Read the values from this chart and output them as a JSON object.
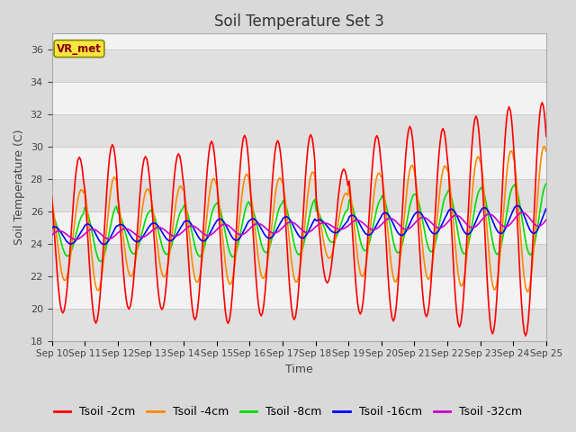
{
  "title": "Soil Temperature Set 3",
  "xlabel": "Time",
  "ylabel": "Soil Temperature (C)",
  "ylim": [
    18,
    37
  ],
  "yticks": [
    18,
    20,
    22,
    24,
    26,
    28,
    30,
    32,
    34,
    36
  ],
  "n_days": 15,
  "xtick_labels": [
    "Sep 10",
    "Sep 11",
    "Sep 12",
    "Sep 13",
    "Sep 14",
    "Sep 15",
    "Sep 16",
    "Sep 17",
    "Sep 18",
    "Sep 19",
    "Sep 20",
    "Sep 21",
    "Sep 22",
    "Sep 23",
    "Sep 24",
    "Sep 25"
  ],
  "series_colors": {
    "Tsoil -2cm": "#ff0000",
    "Tsoil -4cm": "#ff8800",
    "Tsoil -8cm": "#00dd00",
    "Tsoil -16cm": "#0000ff",
    "Tsoil -32cm": "#cc00cc"
  },
  "series_linewidth": 1.2,
  "grid_color": "#cccccc",
  "bg_color": "#d9d9d9",
  "plot_bg_color": "#f2f2f2",
  "stripe_color_light": "#f2f2f2",
  "stripe_color_dark": "#e0e0e0",
  "annotation_text": "VR_met",
  "annotation_color": "#880000",
  "annotation_bg": "#f5e642",
  "annotation_border": "#888800",
  "title_fontsize": 12,
  "label_fontsize": 9,
  "tick_fontsize": 8,
  "legend_fontsize": 9
}
